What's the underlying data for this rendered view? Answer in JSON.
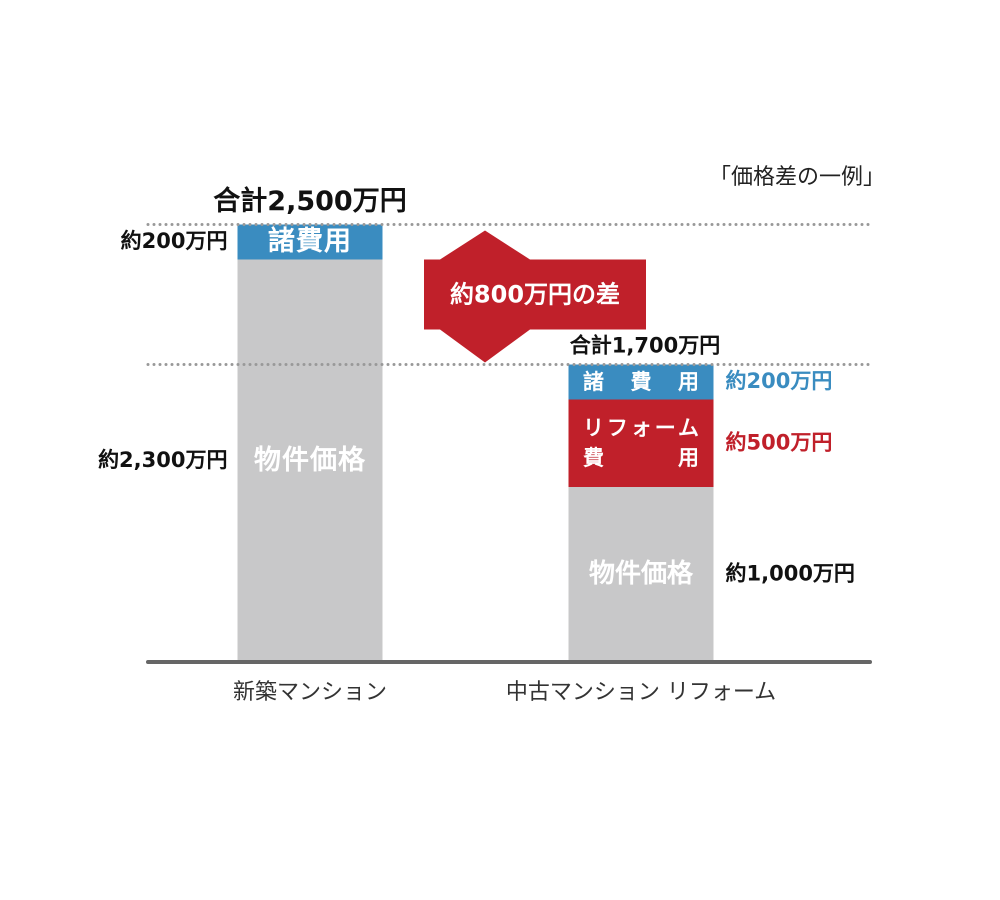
{
  "chart_data": {
    "type": "stacked_bar",
    "title": "「価格差の一例」",
    "categories": [
      "新築マンション",
      "中古マンション リフォーム"
    ],
    "series": [
      {
        "name": "物件価格",
        "color": "#c8c8c9",
        "values": [
          2300,
          1000
        ],
        "value_labels": [
          "約2,300万円",
          "約1,000万円"
        ]
      },
      {
        "name": "リフォーム費用",
        "color": "#c0202a",
        "values": [
          null,
          500
        ],
        "value_labels": [
          null,
          "約500万円"
        ]
      },
      {
        "name": "諸費用",
        "color": "#3a8cc0",
        "values": [
          200,
          200
        ],
        "value_labels": [
          "約200万円",
          "約200万円"
        ]
      }
    ],
    "totals": [
      2500,
      1700
    ],
    "total_labels": [
      "合計2,500万円",
      "合計1,700万円"
    ],
    "difference": 800,
    "difference_label": "約800万円の差"
  }
}
